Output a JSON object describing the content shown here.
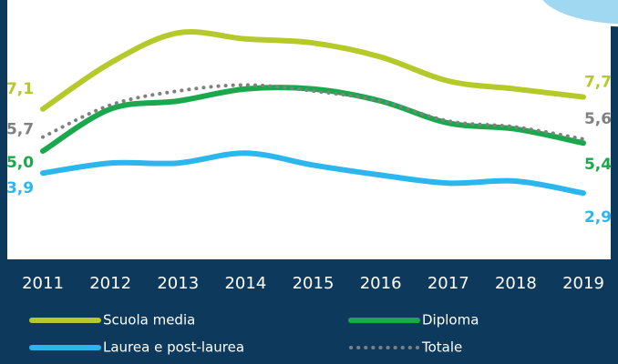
{
  "chart_data": {
    "type": "line",
    "categories": [
      "2011",
      "2012",
      "2013",
      "2014",
      "2015",
      "2016",
      "2017",
      "2018",
      "2019"
    ],
    "ylim": [
      0,
      12.5
    ],
    "series": [
      {
        "name": "Scuola media",
        "color": "#b5c92b",
        "values": [
          7.1,
          9.4,
          10.9,
          10.6,
          10.4,
          9.7,
          8.5,
          8.1,
          7.7
        ],
        "value_labels": [
          "7,1",
          null,
          null,
          null,
          null,
          null,
          null,
          null,
          "7,7"
        ]
      },
      {
        "name": "Diploma",
        "color": "#1aa84c",
        "values": [
          5.0,
          7.1,
          7.5,
          8.1,
          8.1,
          7.5,
          6.4,
          6.1,
          5.4
        ],
        "value_labels": [
          "5,0",
          null,
          null,
          null,
          null,
          null,
          null,
          null,
          "5,4"
        ]
      },
      {
        "name": "Laurea e post-laurea",
        "color": "#2bb7ee",
        "values": [
          3.9,
          4.4,
          4.4,
          4.9,
          4.3,
          3.8,
          3.4,
          3.5,
          2.9
        ],
        "value_labels": [
          "3,9",
          null,
          null,
          null,
          null,
          null,
          null,
          null,
          "2,9"
        ]
      },
      {
        "name": "Totale",
        "color": "#808080",
        "style": "dotted",
        "values": [
          5.7,
          7.3,
          8.0,
          8.3,
          8.0,
          7.5,
          6.5,
          6.2,
          5.6
        ],
        "value_labels": [
          "5,7",
          null,
          null,
          null,
          null,
          null,
          null,
          null,
          "5,6"
        ]
      }
    ]
  }
}
